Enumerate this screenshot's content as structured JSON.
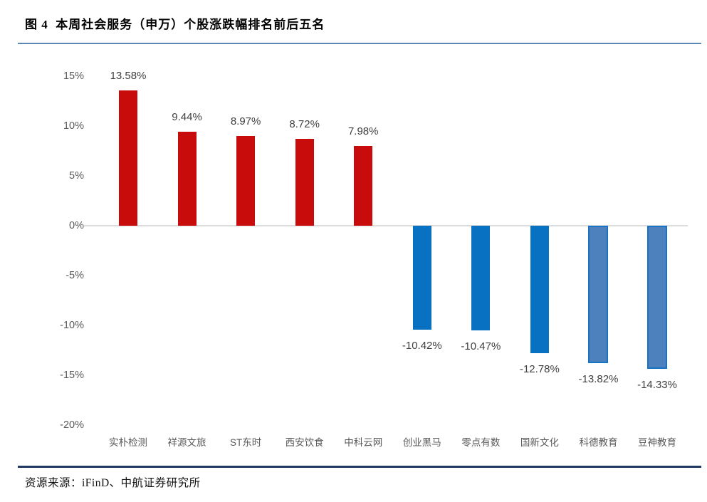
{
  "header": {
    "title": "图 4  本周社会服务（申万）个股涨跌幅排名前后五名"
  },
  "footer": {
    "source": "资源来源：iFinD、中航证券研究所"
  },
  "chart_data": {
    "type": "bar",
    "title": "本周社会服务（申万）个股涨跌幅排名前后五名",
    "categories": [
      "实朴检测",
      "祥源文旅",
      "ST东时",
      "西安饮食",
      "中科云网",
      "创业黑马",
      "零点有数",
      "国新文化",
      "科德教育",
      "豆神教育"
    ],
    "values": [
      13.58,
      9.44,
      8.97,
      8.72,
      7.98,
      -10.42,
      -10.47,
      -12.78,
      -13.82,
      -14.33
    ],
    "value_labels": [
      "13.58%",
      "9.44%",
      "8.97%",
      "8.72%",
      "7.98%",
      "-10.42%",
      "-10.47%",
      "-12.78%",
      "-13.82%",
      "-14.33%"
    ],
    "bar_styles": [
      "gain",
      "gain",
      "gain",
      "gain",
      "gain",
      "loss",
      "loss",
      "loss",
      "loss-light",
      "loss-light"
    ],
    "ytick_values": [
      15,
      10,
      5,
      0,
      -5,
      -10,
      -15,
      -20
    ],
    "ytick_labels": [
      "15%",
      "10%",
      "5%",
      "0%",
      "-5%",
      "-10%",
      "-15%",
      "-20%"
    ],
    "ylim": [
      -20,
      15
    ],
    "xlabel": "",
    "ylabel": "",
    "grid": "zero-line-only",
    "legend": "none",
    "colors": {
      "gain": "#c80b0b",
      "loss": "#0971c2",
      "loss_light_fill": "#4d81bd",
      "loss_light_border": "#1873c4",
      "zero_line": "#dcdcdc",
      "axis_text": "#595959",
      "value_text": "#404040",
      "top_rule": "#5b87b7",
      "bottom_rule": "#1f3864"
    }
  }
}
